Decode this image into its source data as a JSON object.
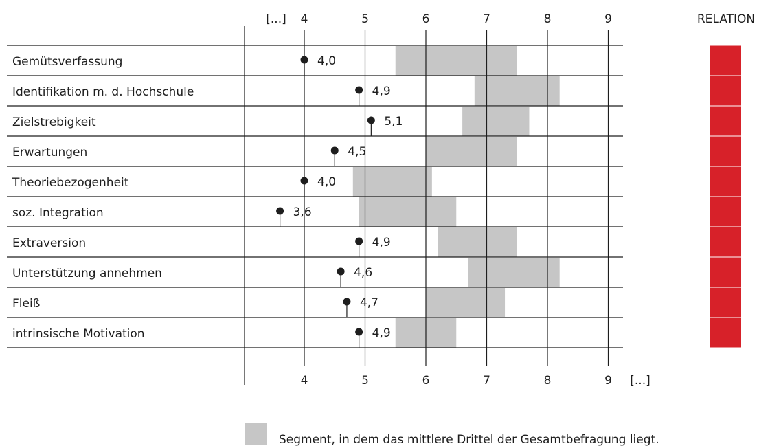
{
  "chart_data": {
    "type": "bar",
    "x_unit_label": "[...]",
    "ticks": [
      4,
      5,
      6,
      7,
      8,
      9
    ],
    "xlim": [
      3.0,
      9.25
    ],
    "relation_label": "RELATION",
    "categories": [
      "Gemütsverfassung",
      "Identifikation m. d. Hochschule",
      "Zielstrebigkeit",
      "Erwartungen",
      "Theoriebezogenheit",
      "soz. Integration",
      "Extraversion",
      "Unterstützung annehmen",
      "Fleiß",
      "intrinsische Motivation"
    ],
    "values": [
      4.0,
      4.9,
      5.1,
      4.5,
      4.0,
      3.6,
      4.9,
      4.6,
      4.7,
      4.9
    ],
    "value_labels": [
      "4,0",
      "4,9",
      "5,1",
      "4,5",
      "4,0",
      "3,6",
      "4,9",
      "4,6",
      "4,7",
      "4,9"
    ],
    "middle_third_ranges": [
      [
        5.5,
        7.5
      ],
      [
        6.8,
        8.2
      ],
      [
        6.6,
        7.7
      ],
      [
        6.0,
        7.5
      ],
      [
        4.8,
        6.1
      ],
      [
        4.9,
        6.5
      ],
      [
        6.2,
        7.5
      ],
      [
        6.7,
        8.2
      ],
      [
        6.0,
        7.3
      ],
      [
        5.5,
        6.5
      ]
    ],
    "legend": {
      "text": "Segment, in dem das mittlere Drittel der Gesamtbefragung liegt."
    },
    "colors": {
      "segment": "#c6c6c6",
      "relation": "#d72129",
      "line": "#1e1e1e"
    }
  }
}
